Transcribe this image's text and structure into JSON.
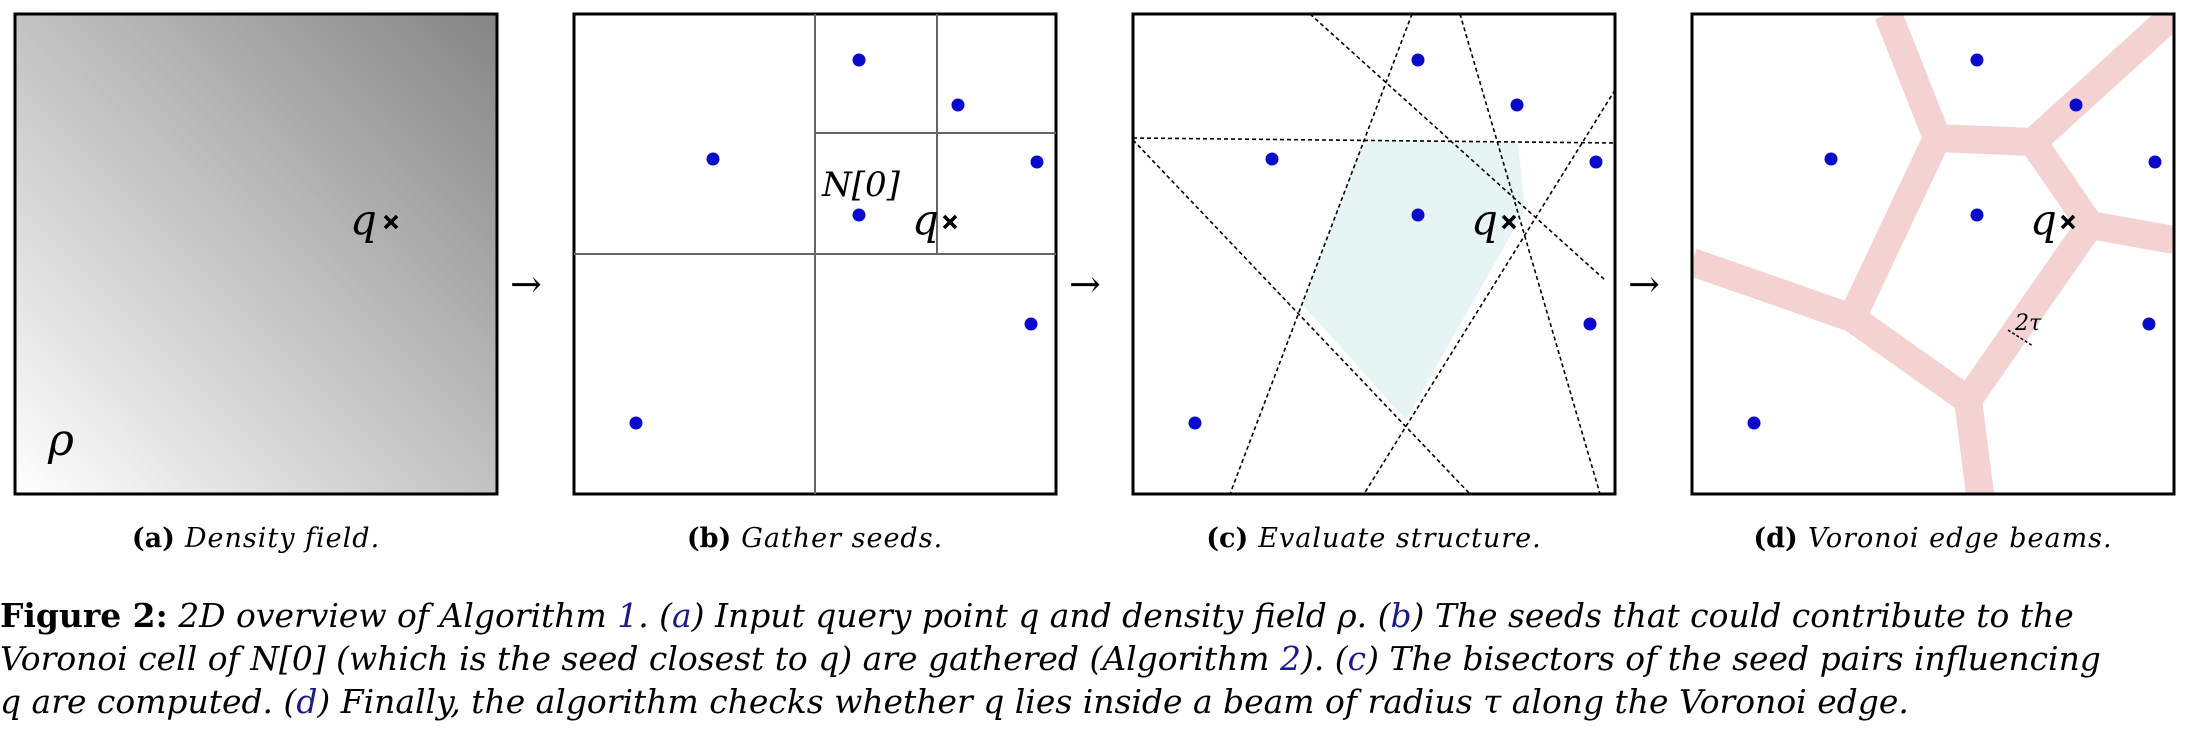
{
  "panels": [
    {
      "id": "a",
      "label": "(a)",
      "caption": "Density field.",
      "symbol": "ρ",
      "query": "q"
    },
    {
      "id": "b",
      "label": "(b)",
      "caption": "Gather seeds.",
      "cell_label": "N[0]",
      "query": "q"
    },
    {
      "id": "c",
      "label": "(c)",
      "caption": "Evaluate structure.",
      "query": "q"
    },
    {
      "id": "d",
      "label": "(d)",
      "caption": "Voronoi edge beams.",
      "query": "q",
      "beam_label": "2τ"
    }
  ],
  "arrow_glyph": "→",
  "figure_caption": {
    "label": "Figure 2:",
    "lines": [
      [
        {
          "t": " 2D overview of Algorithm "
        },
        {
          "t": "1",
          "ref": true
        },
        {
          "t": ". ("
        },
        {
          "t": "a",
          "ref": true
        },
        {
          "t": ") Input query point q and density field ρ. ("
        },
        {
          "t": "b",
          "ref": true
        },
        {
          "t": ") The seeds that could contribute to the"
        }
      ],
      [
        {
          "t": "Voronoi cell of N[0] (which is the seed closest to q) are gathered (Algorithm "
        },
        {
          "t": "2",
          "ref": true
        },
        {
          "t": "). ("
        },
        {
          "t": "c",
          "ref": true
        },
        {
          "t": ") The bisectors of the seed pairs influencing"
        }
      ],
      [
        {
          "t": "q are computed. ("
        },
        {
          "t": "d",
          "ref": true
        },
        {
          "t": ") Finally, the algorithm checks whether q lies inside a beam of radius τ along the Voronoi edge."
        }
      ]
    ]
  },
  "colors": {
    "seed": "#0a0acd",
    "cell_fill": "#e6f4f4",
    "beam_fill": "#f4d2d2",
    "beam_edge": "#e8b4b4"
  }
}
